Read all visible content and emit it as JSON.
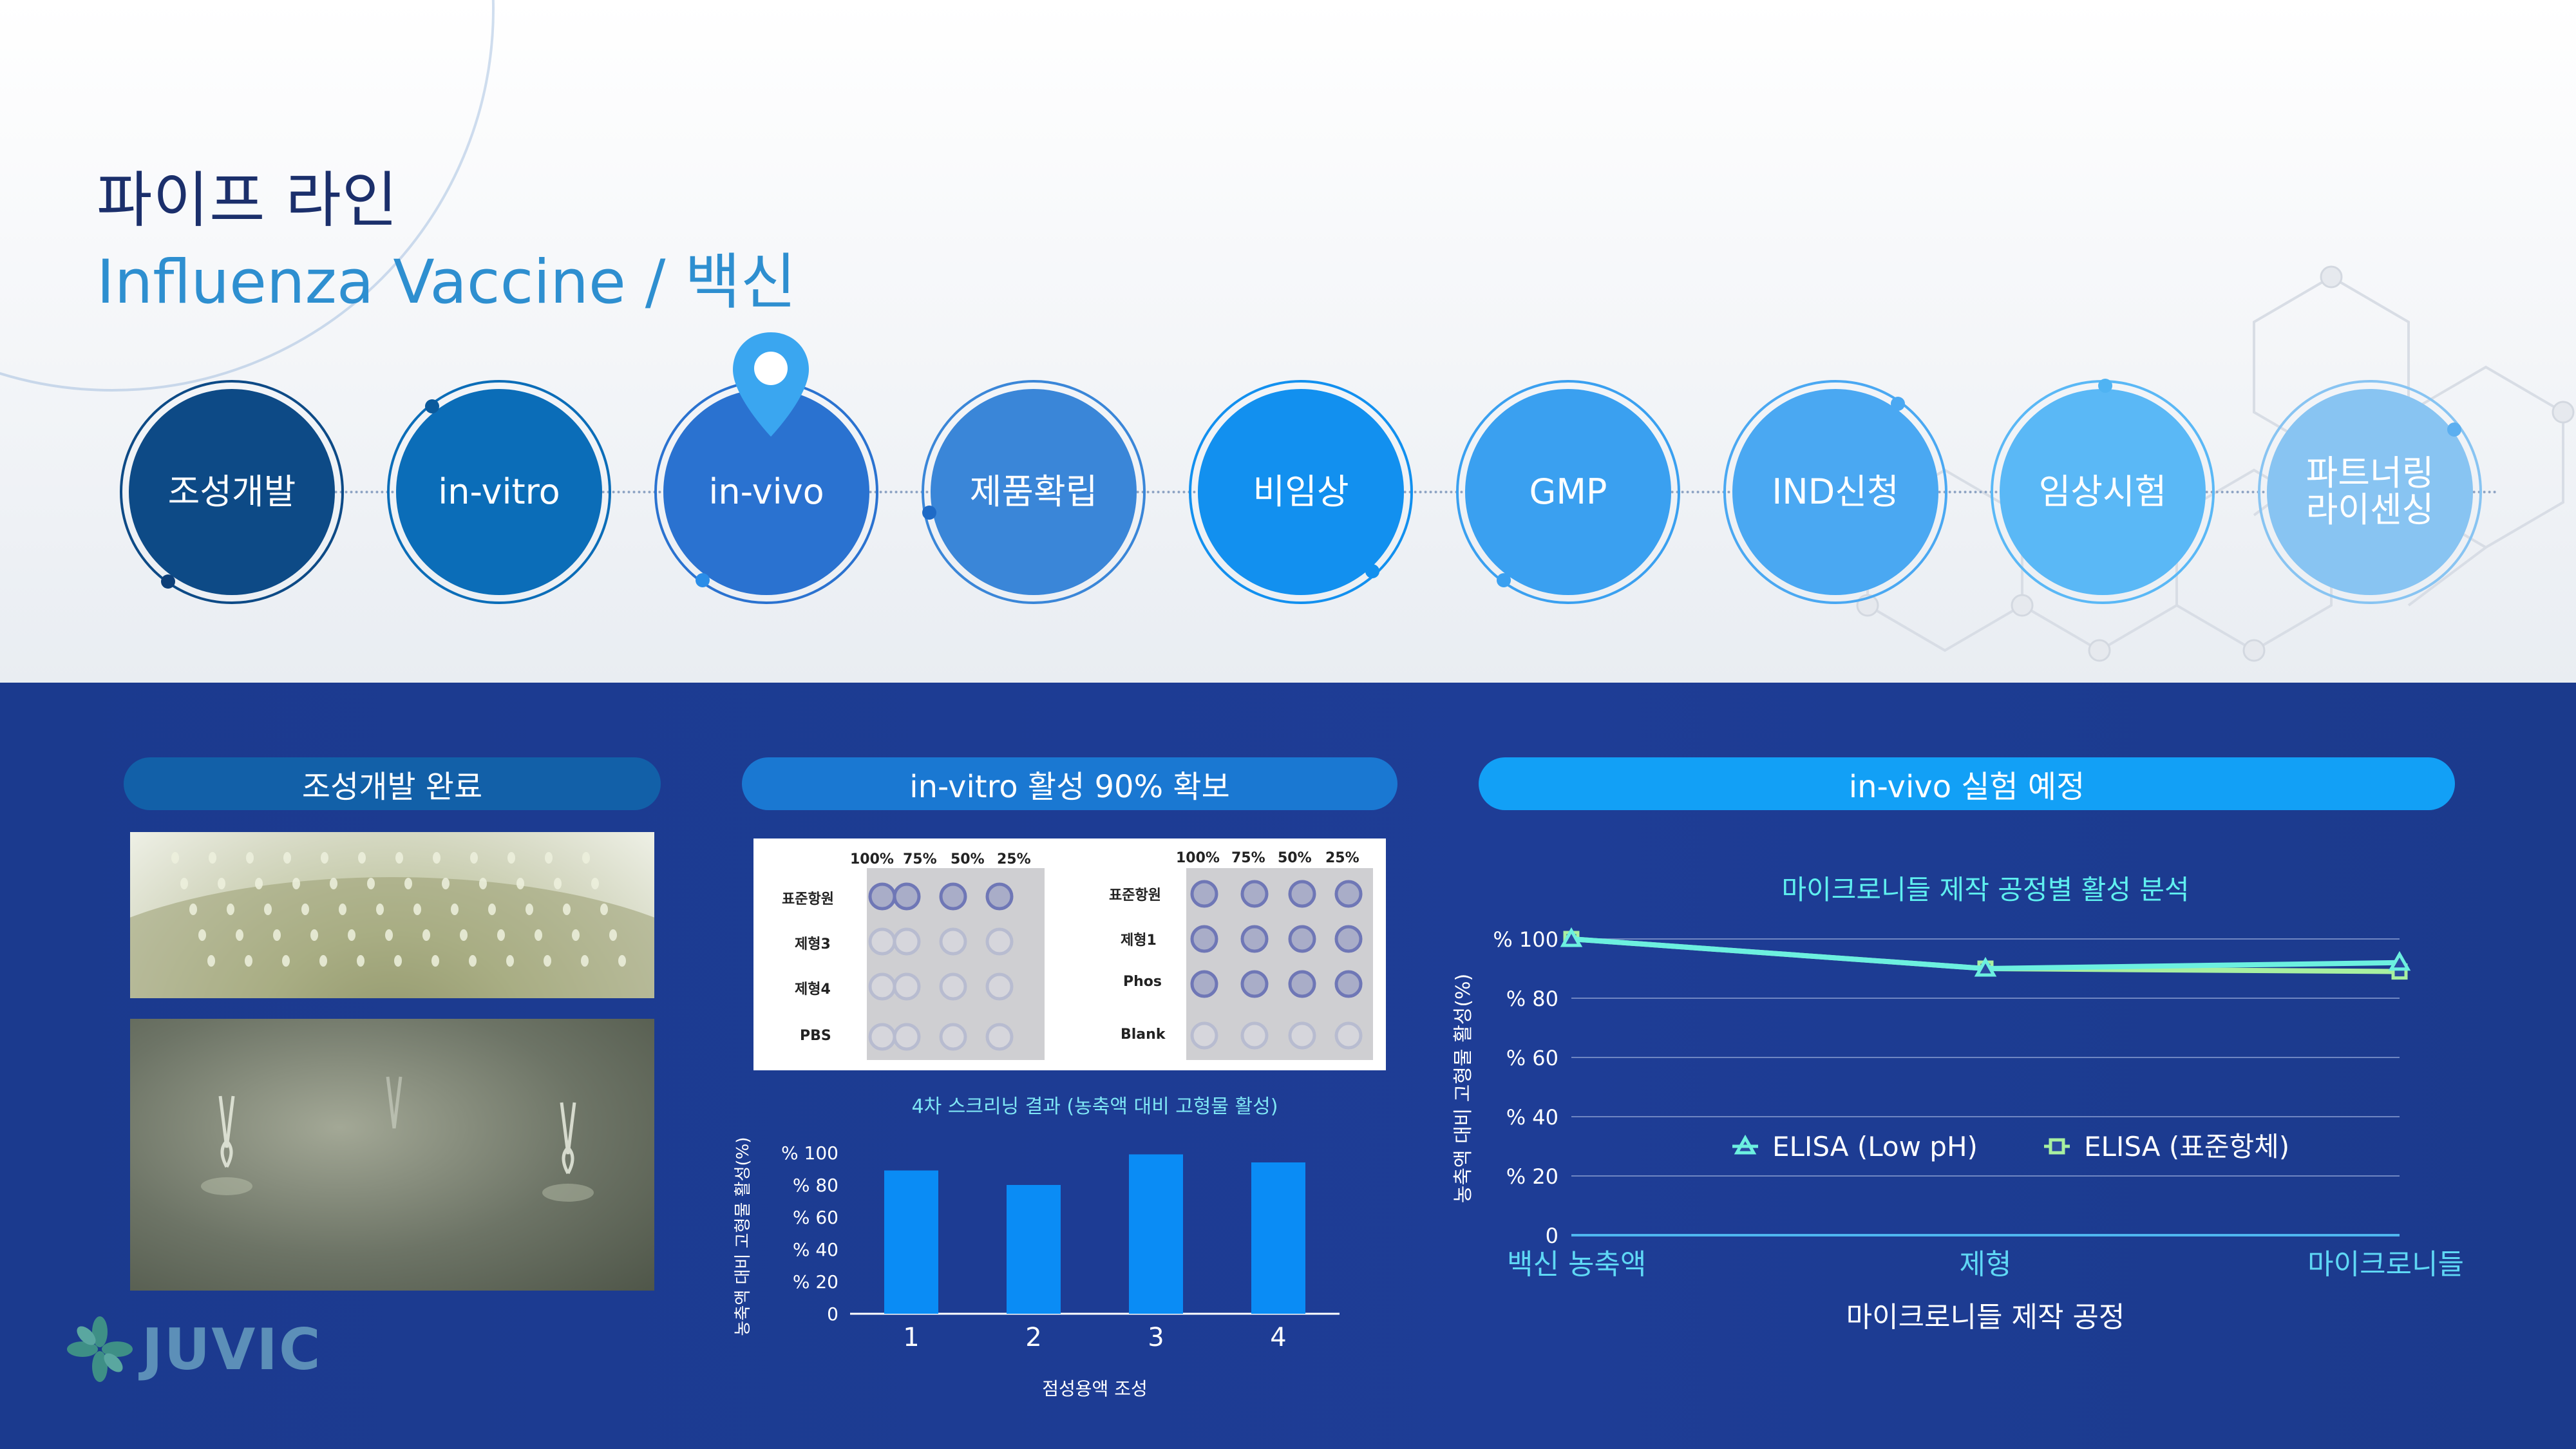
{
  "header": {
    "title": "파이프 라인",
    "subtitle": "Influenza Vaccine / 백신"
  },
  "stages": [
    {
      "label": "조성개발",
      "color": "#0d4a86"
    },
    {
      "label": "in-vitro",
      "color": "#0b6db8"
    },
    {
      "label": "in-vivo",
      "color": "#2a72d0"
    },
    {
      "label": "제품확립",
      "color": "#3a86d8"
    },
    {
      "label": "비임상",
      "color": "#1290ef"
    },
    {
      "label": "GMP",
      "color": "#3aa0f0"
    },
    {
      "label": "IND신청",
      "color": "#4aa8f2"
    },
    {
      "label": "임상시험",
      "color": "#5ab8f6"
    },
    {
      "label": "파트너링\n라이센싱",
      "color": "#88c4f2"
    }
  ],
  "current_stage_icon": "location-pin-icon",
  "sections": {
    "composition": {
      "title": "조성개발 완료"
    },
    "invitro": {
      "title": "in-vitro 활성 90% 확보"
    },
    "invivo": {
      "title": "in-vivo 실험 예정"
    }
  },
  "plate": {
    "left": {
      "columns": [
        "100%",
        "75%",
        "50%",
        "25%"
      ],
      "rows": [
        "표준항원",
        "제형3",
        "제형4",
        "PBS"
      ]
    },
    "right": {
      "columns": [
        "100%",
        "75%",
        "50%",
        "25%"
      ],
      "rows": [
        "표준항원",
        "제형1",
        "Phos",
        "Blank"
      ]
    }
  },
  "logo": {
    "text": "JUVIC"
  },
  "chart_data": [
    {
      "type": "bar",
      "title": "4차 스크리닝 결과 (농축액 대비 고형물 활성)",
      "xlabel": "점성용액 조성",
      "ylabel": "농축액 대비 고형물 활성(%)",
      "categories": [
        "1",
        "2",
        "3",
        "4"
      ],
      "values": [
        89,
        80,
        99,
        94
      ],
      "yticks": [
        "0",
        "% 20",
        "% 40",
        "% 60",
        "% 80",
        "% 100"
      ],
      "ylim": [
        0,
        100
      ],
      "color": "#0a8cf5"
    },
    {
      "type": "line",
      "title": "마이크로니들 제작 공정별 활성 분석",
      "xlabel": "마이크로니들 제작 공정",
      "ylabel": "농축액 대비 고형물 활성(%)",
      "categories": [
        "백신 농축액",
        "제형",
        "마이크로니들"
      ],
      "yticks": [
        "0",
        "% 20",
        "% 40",
        "% 60",
        "% 80",
        "% 100"
      ],
      "ylim": [
        0,
        100
      ],
      "legend": "center",
      "series": [
        {
          "name": "ELISA (Low pH)",
          "values": [
            100,
            90,
            92
          ],
          "color": "#6cf0e0"
        },
        {
          "name": "ELISA (표준항체)",
          "values": [
            100,
            90,
            89
          ],
          "color": "#a8f0a0"
        }
      ]
    }
  ]
}
